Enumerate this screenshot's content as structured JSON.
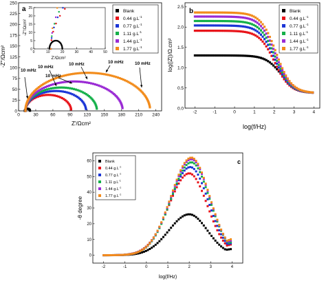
{
  "legend": {
    "entries": [
      "Blank",
      "0.44 g.L",
      "0.77 g.L",
      "1.11 g.L",
      "1.44 g.L",
      "1.77 g.L"
    ],
    "superscript": "-1",
    "colors": [
      "#000000",
      "#e8141a",
      "#1b35d6",
      "#15b04a",
      "#9a2bd4",
      "#f28c1c"
    ]
  },
  "chart_data": [
    {
      "type": "scatter",
      "panel_label": "a",
      "xlabel": "Z'/Ωcm²",
      "ylabel": "-Z''/Ωcm²",
      "xlim": [
        0,
        250
      ],
      "ylim": [
        0,
        250
      ],
      "x_ticks": [
        "0",
        "30",
        "60",
        "90",
        "120",
        "150",
        "180",
        "210",
        "240"
      ],
      "y_ticks": [
        "0",
        "25",
        "50",
        "75",
        "100",
        "125",
        "150",
        "175",
        "200",
        "225",
        "250"
      ],
      "annotations": [
        "10 mHz",
        "10 mHz",
        "10 mHz",
        "10 mHz",
        "10 mHz",
        "10 mHz"
      ],
      "series": [
        {
          "name": "Blank",
          "x_start": 11,
          "x_end": 20,
          "peak_y": 5
        },
        {
          "name": "0.44 g.L",
          "x_start": 12,
          "x_end": 92,
          "peak_y": 37
        },
        {
          "name": "0.77 g.L",
          "x_start": 12,
          "x_end": 118,
          "peak_y": 46
        },
        {
          "name": "1.11 g.L",
          "x_start": 12,
          "x_end": 137,
          "peak_y": 54
        },
        {
          "name": "1.44 g.L",
          "x_start": 12,
          "x_end": 182,
          "peak_y": 68
        },
        {
          "name": "1.77 g.L",
          "x_start": 12,
          "x_end": 230,
          "peak_y": 88
        }
      ],
      "inset": {
        "xlabel": "Z'/Ωcm²",
        "ylabel": "-Z''/Ωcm²",
        "xlim": [
          0,
          50
        ],
        "ylim": [
          0,
          25
        ],
        "x_ticks": [
          "0",
          "10",
          "20",
          "30",
          "40",
          "50"
        ],
        "y_ticks": [
          "0",
          "5",
          "10",
          "15",
          "20",
          "25"
        ]
      }
    },
    {
      "type": "scatter",
      "panel_label": "b",
      "xlabel": "log(f/Hz)",
      "ylabel": "log(|Z|)/Ω.cm²",
      "xlim": [
        -2.5,
        4.3
      ],
      "ylim": [
        0,
        2.6
      ],
      "x_ticks": [
        "-2",
        "-1",
        "0",
        "1",
        "2",
        "3",
        "4"
      ],
      "y_ticks": [
        "0.0",
        "0.5",
        "1.0",
        "1.5",
        "2.0",
        "2.5"
      ],
      "series": [
        {
          "name": "Blank",
          "low_f_value": 1.3,
          "high_f_value": 0.37
        },
        {
          "name": "0.44 g.L",
          "low_f_value": 1.91,
          "high_f_value": 0.37
        },
        {
          "name": "0.77 g.L",
          "low_f_value": 2.04,
          "high_f_value": 0.37
        },
        {
          "name": "1.11 g.L",
          "low_f_value": 2.15,
          "high_f_value": 0.37
        },
        {
          "name": "1.44 g.L",
          "low_f_value": 2.26,
          "high_f_value": 0.37
        },
        {
          "name": "1.77 g.L",
          "low_f_value": 2.36,
          "high_f_value": 0.37
        }
      ]
    },
    {
      "type": "scatter",
      "panel_label": "c",
      "xlabel": "log(f/Hz)",
      "ylabel": "-θ degree",
      "xlim": [
        -2.5,
        4.5
      ],
      "ylim": [
        -5,
        65
      ],
      "x_ticks": [
        "-2",
        "-1",
        "0",
        "1",
        "2",
        "3",
        "4"
      ],
      "y_ticks": [
        "0",
        "10",
        "20",
        "30",
        "40",
        "50",
        "60"
      ],
      "series": [
        {
          "name": "Blank",
          "peak_x": 2.0,
          "peak_y": 26,
          "end_y": 4
        },
        {
          "name": "0.44 g.L",
          "peak_x": 2.0,
          "peak_y": 52,
          "end_y": 7
        },
        {
          "name": "0.77 g.L",
          "peak_x": 2.05,
          "peak_y": 56,
          "end_y": 8
        },
        {
          "name": "1.11 g.L",
          "peak_x": 2.1,
          "peak_y": 59,
          "end_y": 9
        },
        {
          "name": "1.44 g.L",
          "peak_x": 2.1,
          "peak_y": 61,
          "end_y": 10
        },
        {
          "name": "1.77 g.L",
          "peak_x": 2.1,
          "peak_y": 62,
          "end_y": 11
        }
      ]
    }
  ]
}
